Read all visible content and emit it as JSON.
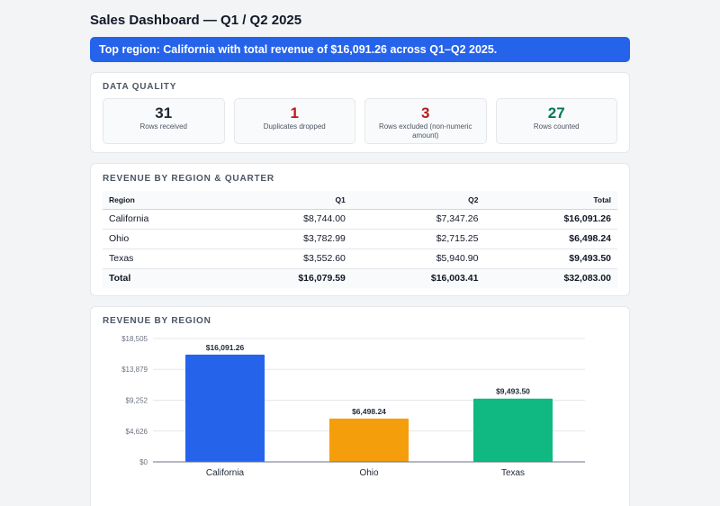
{
  "page": {
    "title": "Sales Dashboard — Q1 / Q2 2025",
    "banner": "Top region: California with total revenue of $16,091.26 across Q1–Q2 2025."
  },
  "data_quality": {
    "title": "DATA QUALITY",
    "tiles": [
      {
        "value": "31",
        "label": "Rows received",
        "color": "#1f2937"
      },
      {
        "value": "1",
        "label": "Duplicates dropped",
        "color": "#b91c1c"
      },
      {
        "value": "3",
        "label": "Rows excluded (non-numeric amount)",
        "color": "#b91c1c"
      },
      {
        "value": "27",
        "label": "Rows counted",
        "color": "#047857"
      }
    ]
  },
  "revenue_table": {
    "title": "REVENUE BY REGION & QUARTER",
    "headers": [
      "Region",
      "Q1",
      "Q2",
      "Total"
    ],
    "rows": [
      [
        "California",
        "$8,744.00",
        "$7,347.26",
        "$16,091.26"
      ],
      [
        "Ohio",
        "$3,782.99",
        "$2,715.25",
        "$6,498.24"
      ],
      [
        "Texas",
        "$3,552.60",
        "$5,940.90",
        "$9,493.50"
      ]
    ],
    "total_row": [
      "Total",
      "$16,079.59",
      "$16,003.41",
      "$32,083.00"
    ]
  },
  "chart_section": {
    "title": "REVENUE BY REGION"
  },
  "chart_data": {
    "type": "bar",
    "title": "",
    "xlabel": "",
    "ylabel": "",
    "categories": [
      "California",
      "Ohio",
      "Texas"
    ],
    "values": [
      16091.26,
      6498.24,
      9493.5
    ],
    "value_labels": [
      "$16,091.26",
      "$6,498.24",
      "$9,493.50"
    ],
    "colors": [
      "#2563eb",
      "#f59e0b",
      "#10b981"
    ],
    "yticks": [
      0,
      4626,
      9252,
      13879,
      18505
    ],
    "ytick_labels": [
      "$0",
      "$4,626",
      "$9,252",
      "$13,879",
      "$18,505"
    ],
    "ylim": [
      0,
      18505
    ],
    "grid": true
  }
}
